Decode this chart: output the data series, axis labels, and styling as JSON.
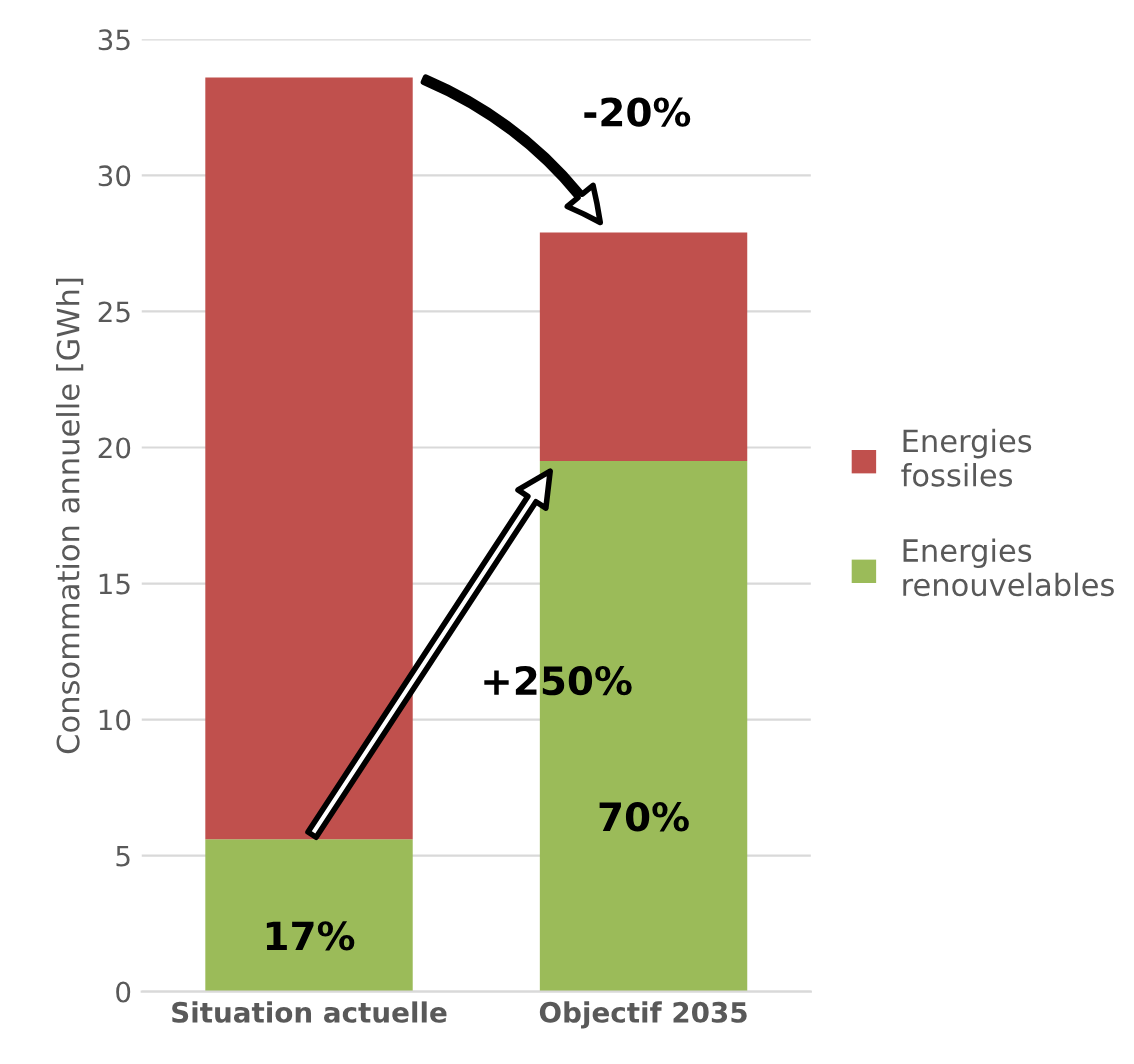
{
  "chart_data": {
    "type": "bar",
    "stacked": true,
    "categories": [
      "Situation actuelle",
      "Objectif 2035"
    ],
    "series": [
      {
        "name": "Energies renouvelables",
        "color": "#9bbb59",
        "values": [
          5.6,
          19.5
        ]
      },
      {
        "name": "Energies fossiles",
        "color": "#c0504d",
        "values": [
          28.0,
          8.4
        ]
      }
    ],
    "ylabel": "Consommation annuelle [GWh]",
    "ylim": [
      0,
      35
    ],
    "yticks": [
      0,
      5,
      10,
      15,
      20,
      25,
      30,
      35
    ],
    "grid": "y",
    "legend": "right",
    "annotations": [
      "17%",
      "70%",
      "-20%",
      "+250%"
    ]
  }
}
